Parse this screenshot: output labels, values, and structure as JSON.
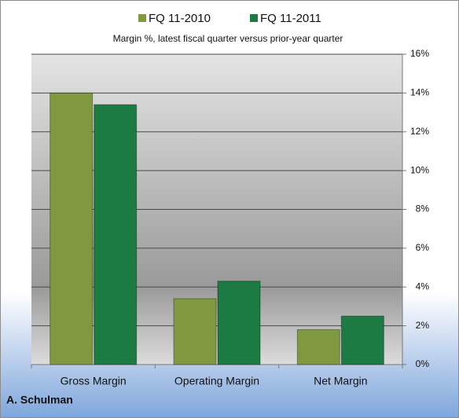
{
  "chart_data": {
    "type": "bar",
    "subtitle": "Margin %,  latest fiscal quarter versus prior-year quarter",
    "footer": "A. Schulman",
    "categories": [
      "Gross Margin",
      "Operating Margin",
      "Net Margin"
    ],
    "series": [
      {
        "name": "FQ 11-2010",
        "color": "#80993f",
        "values": [
          14.0,
          3.4,
          1.8
        ]
      },
      {
        "name": "FQ 11-2011",
        "color": "#1c7a43",
        "values": [
          13.4,
          4.3,
          2.5
        ]
      }
    ],
    "ylim": [
      0,
      16
    ],
    "yticks": [
      {
        "value": 0,
        "label": "0%"
      },
      {
        "value": 2,
        "label": "2%"
      },
      {
        "value": 4,
        "label": "4%"
      },
      {
        "value": 6,
        "label": "6%"
      },
      {
        "value": 8,
        "label": "8%"
      },
      {
        "value": 10,
        "label": "10%"
      },
      {
        "value": 12,
        "label": "12%"
      },
      {
        "value": 14,
        "label": "14%"
      },
      {
        "value": 16,
        "label": "16%"
      }
    ],
    "grid": true,
    "legend": "top"
  }
}
